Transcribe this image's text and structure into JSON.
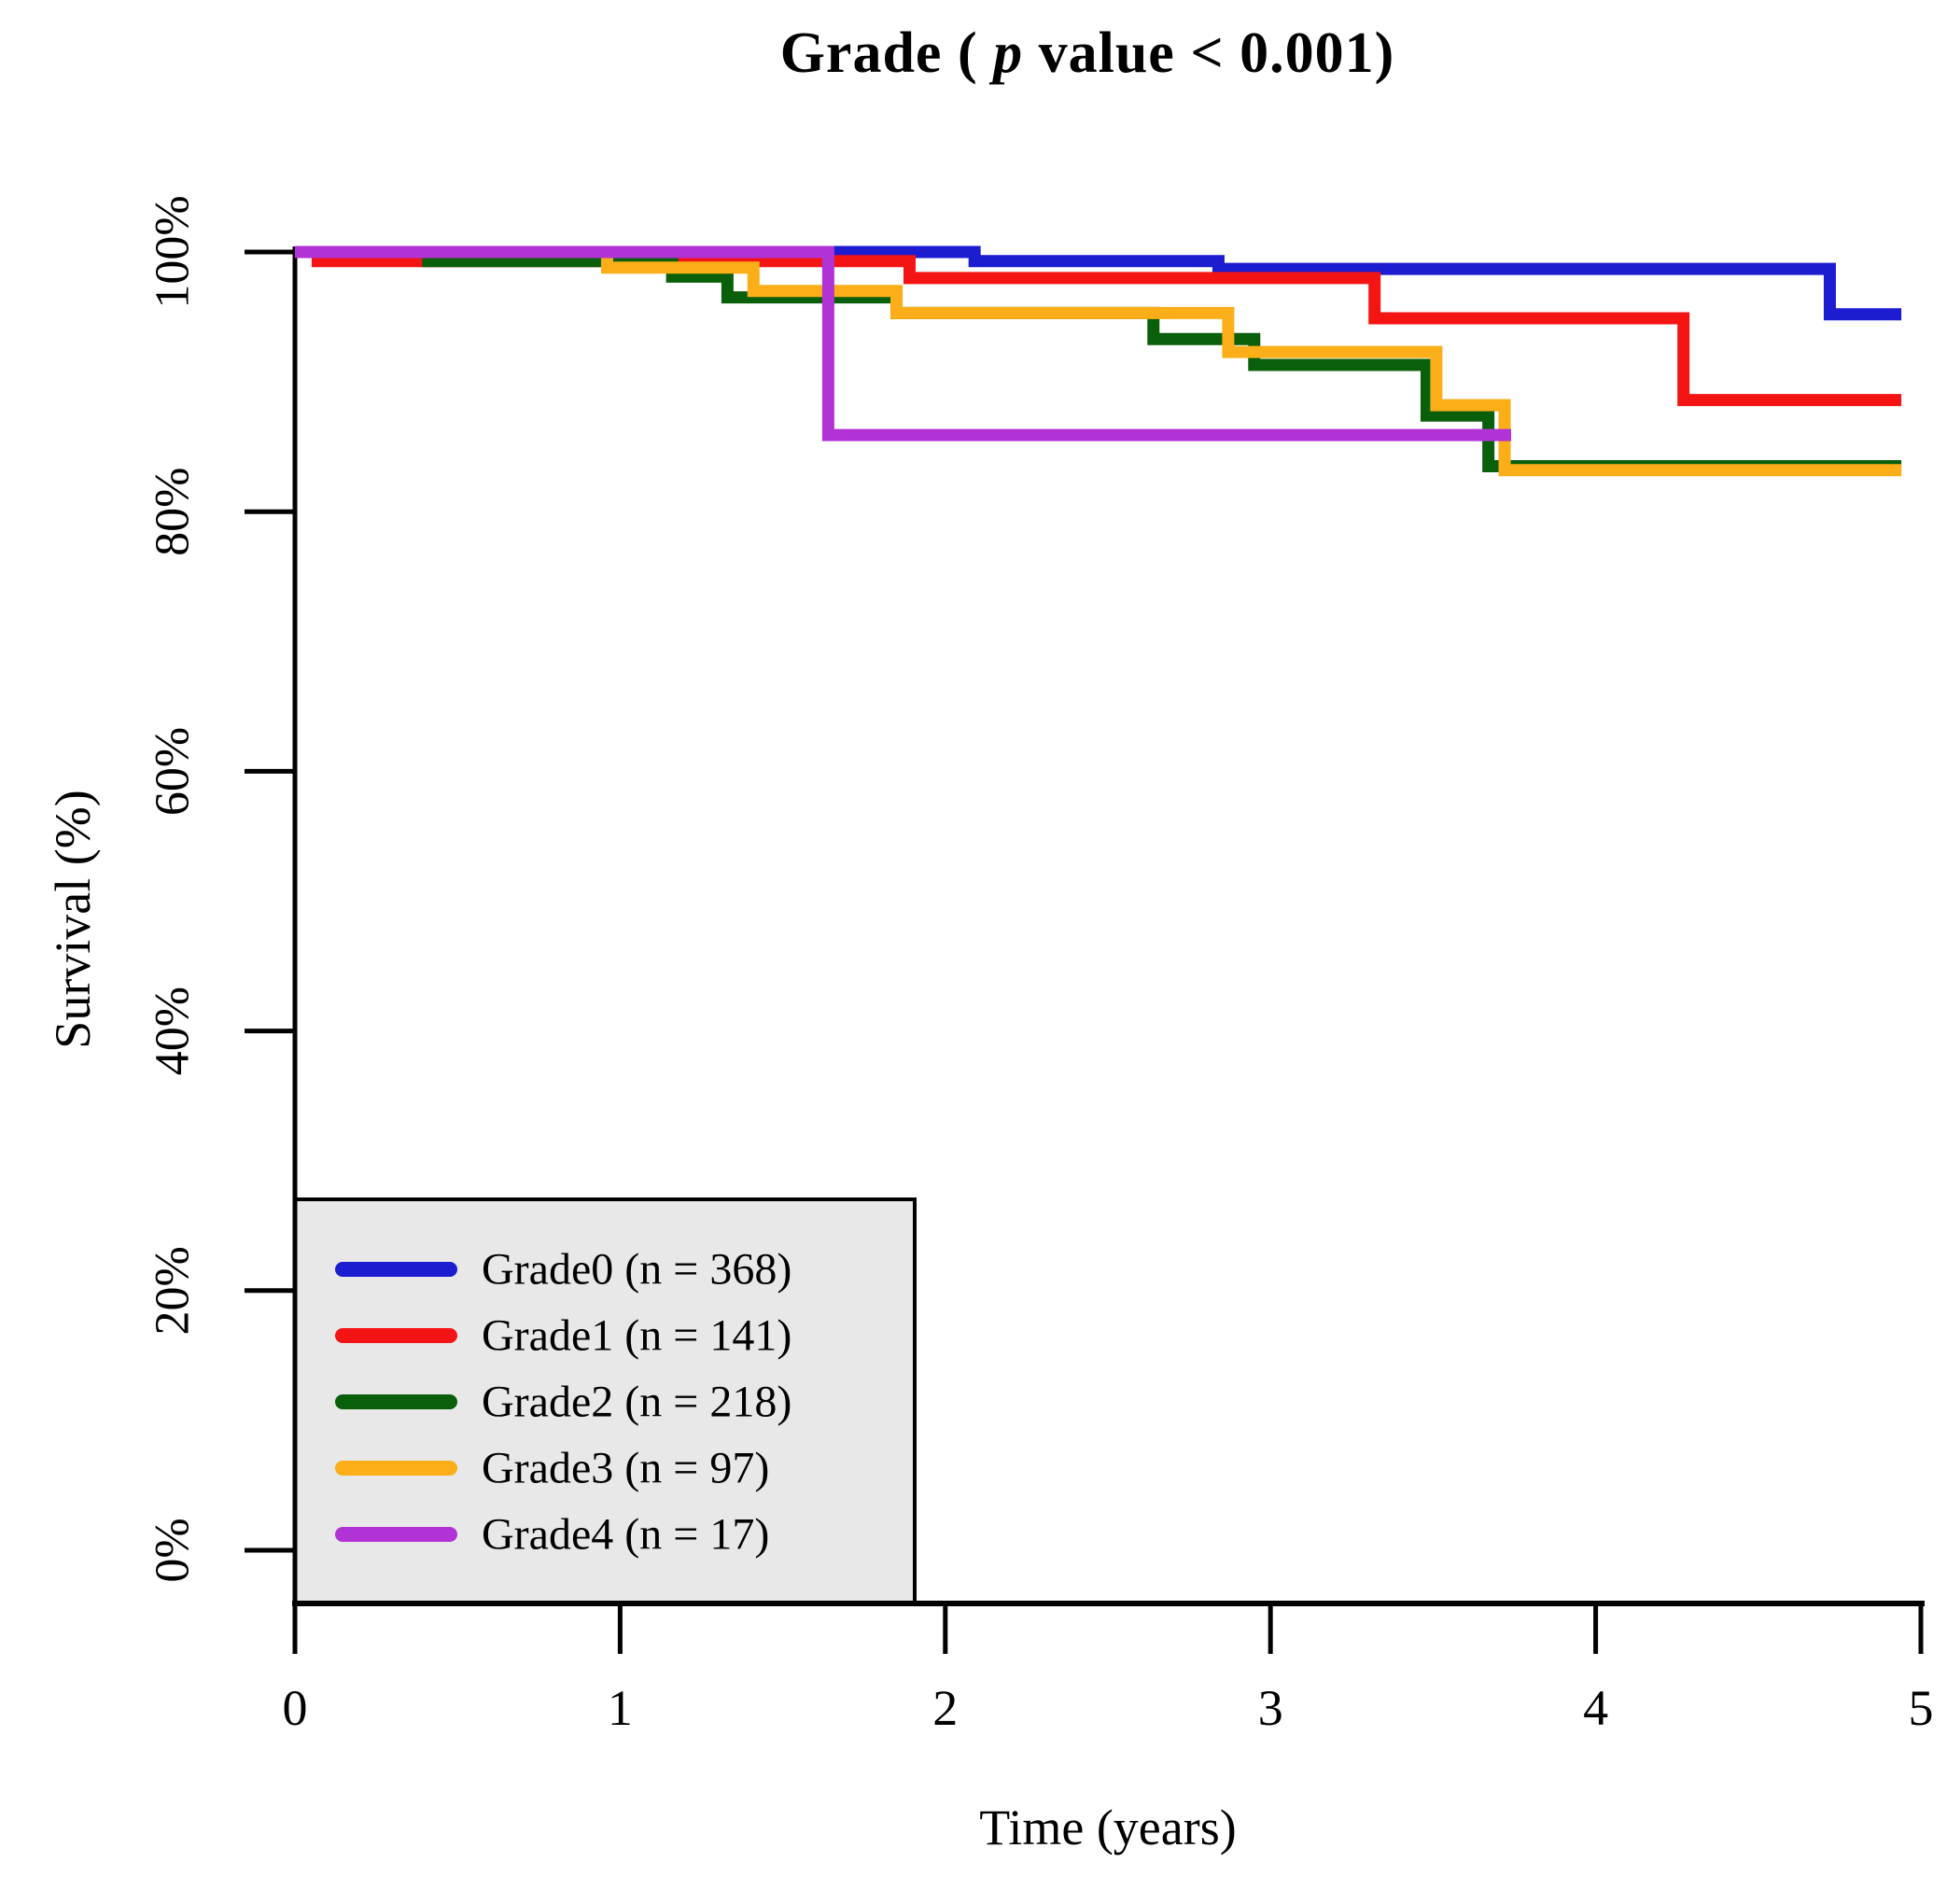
{
  "figure": {
    "title": {
      "prefix": "Grade ( ",
      "italic_var": "p",
      "suffix": " value < 0.001)"
    },
    "x_axis": {
      "label": "Time (years)",
      "tick_labels": [
        "0",
        "1",
        "2",
        "3",
        "4",
        "5"
      ]
    },
    "y_axis": {
      "label": "Survival (%)",
      "tick_labels": [
        "100%",
        "80%",
        "60%",
        "40%",
        "20%",
        "0%"
      ]
    },
    "legend": {
      "background_color": "#e8e8e8",
      "border_color": "#000000",
      "items": [
        {
          "label": "Grade0 (n = 368)",
          "color": "#1c1cd1"
        },
        {
          "label": "Grade1 (n = 141)",
          "color": "#f51414"
        },
        {
          "label": "Grade2 (n = 218)",
          "color": "#0a5f0a"
        },
        {
          "label": "Grade3 (n = 97)",
          "color": "#fbae17"
        },
        {
          "label": "Grade4 (n = 17)",
          "color": "#b133d6"
        }
      ]
    }
  },
  "chart_data": {
    "type": "line",
    "subtype": "kaplan_meier_step",
    "title": "Grade ( p value < 0.001)",
    "p_value": "< 0.001",
    "xlabel": "Time (years)",
    "ylabel": "Survival (%)",
    "xlim": [
      0,
      5
    ],
    "ylim_percent": [
      0,
      100
    ],
    "x_ticks": [
      0,
      1,
      2,
      3,
      4,
      5
    ],
    "y_ticks_percent": [
      100,
      80,
      60,
      40,
      20,
      0
    ],
    "grid": false,
    "legend_position": "bottom-left",
    "curve_end_time": 4.94,
    "series": [
      {
        "name": "Grade0",
        "n": 368,
        "color": "#1c1cd1",
        "steps": [
          [
            0,
            100
          ],
          [
            2.09,
            99.3
          ],
          [
            2.84,
            98.7
          ],
          [
            4.72,
            95.2
          ]
        ],
        "end_t": 4.94
      },
      {
        "name": "Grade1",
        "n": 141,
        "color": "#f51414",
        "steps": [
          [
            0,
            100
          ],
          [
            0.07,
            99.3
          ],
          [
            1.89,
            98.0
          ],
          [
            3.32,
            94.9
          ],
          [
            4.27,
            88.6
          ]
        ],
        "end_t": 4.94
      },
      {
        "name": "Grade2",
        "n": 218,
        "color": "#0a5f0a",
        "steps": [
          [
            0,
            100
          ],
          [
            0.41,
            99.3
          ],
          [
            1.16,
            98.1
          ],
          [
            1.33,
            96.5
          ],
          [
            1.85,
            95.3
          ],
          [
            2.64,
            93.3
          ],
          [
            2.95,
            91.3
          ],
          [
            3.48,
            87.4
          ],
          [
            3.67,
            83.5
          ]
        ],
        "end_t": 4.94
      },
      {
        "name": "Grade3",
        "n": 97,
        "color": "#fbae17",
        "steps": [
          [
            0,
            100
          ],
          [
            0.96,
            98.8
          ],
          [
            1.41,
            97.0
          ],
          [
            1.85,
            95.3
          ],
          [
            2.87,
            92.3
          ],
          [
            3.51,
            88.2
          ],
          [
            3.72,
            83.2
          ]
        ],
        "end_t": 4.94
      },
      {
        "name": "Grade4",
        "n": 17,
        "color": "#b133d6",
        "steps": [
          [
            0,
            100
          ],
          [
            1.64,
            85.9
          ]
        ],
        "end_t": 3.74
      }
    ]
  }
}
